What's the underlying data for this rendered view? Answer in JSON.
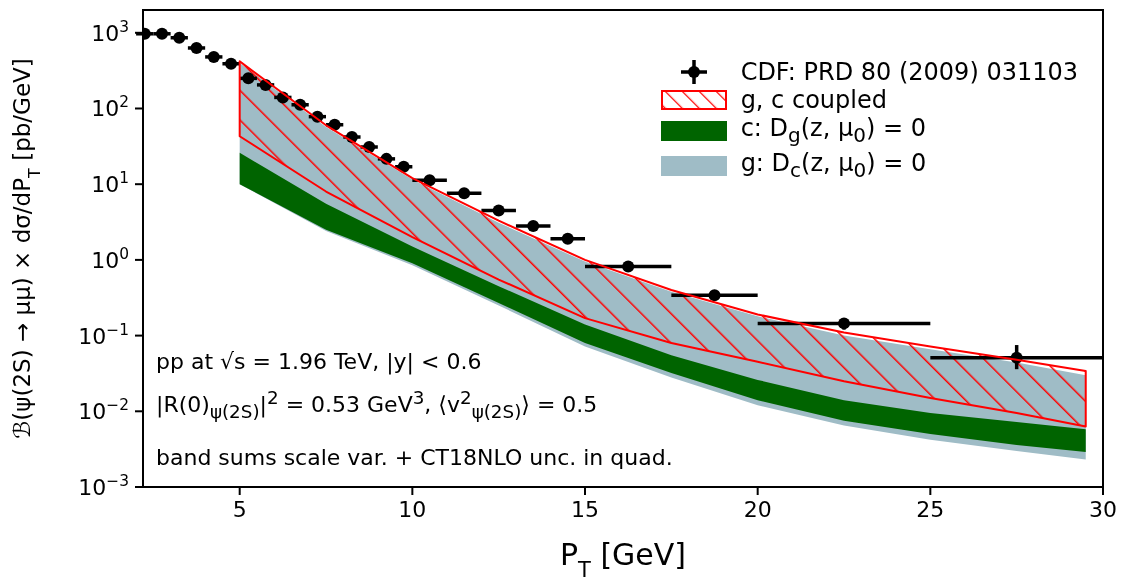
{
  "chart_data": {
    "type": "scatter",
    "xlabel": "P$_{T}$ [GeV]",
    "ylabel": "ℬ(ψ(2S) → μμ) × dσ/dP$_{T}$ [pb/GeV]",
    "log": "y",
    "xlim": [
      2.2,
      30
    ],
    "xticks": [
      5,
      10,
      15,
      20,
      25,
      30
    ],
    "ylim": [
      0.001,
      2000
    ],
    "yticks": [
      {
        "value": 0.001,
        "label": "10$^{−3}$"
      },
      {
        "value": 0.01,
        "label": "10$^{−2}$"
      },
      {
        "value": 0.1,
        "label": "10$^{−1}$"
      },
      {
        "value": 1,
        "label": "10$^{0}$"
      },
      {
        "value": 10,
        "label": "10$^{1}$"
      },
      {
        "value": 100,
        "label": "10$^{2}$"
      },
      {
        "value": 1000,
        "label": "10$^{3}$"
      }
    ],
    "legend": "top right",
    "marker": "circle",
    "series": [
      {
        "type": "area",
        "name": "g: D$_{c}$(z, μ$_{0}$) = 0",
        "color": "#9fbcc6",
        "x": [
          5,
          7.5,
          10,
          12.5,
          15,
          17.5,
          20,
          22.5,
          25,
          27.5,
          29.5
        ],
        "values": [
          null,
          null,
          null,
          null,
          null,
          null,
          null,
          null,
          null,
          null,
          null
        ],
        "lower": [
          10,
          2.4,
          0.85,
          0.25,
          0.072,
          0.028,
          0.012,
          0.0065,
          0.0042,
          0.003,
          0.0023
        ],
        "upper": [
          400,
          57,
          11.5,
          3.1,
          0.95,
          0.38,
          0.18,
          0.1,
          0.066,
          0.044,
          0.03
        ]
      },
      {
        "type": "area",
        "name": "c: D$_{g}$(z, μ$_{0}$) = 0",
        "color": "#006400",
        "x": [
          5,
          7.5,
          10,
          12.5,
          15,
          17.5,
          20,
          22.5,
          25,
          27.5,
          29.5
        ],
        "values": [
          null,
          null,
          null,
          null,
          null,
          null,
          null,
          null,
          null,
          null,
          null
        ],
        "lower": [
          10,
          2.5,
          0.9,
          0.27,
          0.08,
          0.032,
          0.014,
          0.0075,
          0.005,
          0.0036,
          0.0029
        ],
        "upper": [
          26,
          5.5,
          1.5,
          0.45,
          0.14,
          0.055,
          0.026,
          0.014,
          0.0095,
          0.0072,
          0.0058
        ]
      },
      {
        "type": "area",
        "line_style": "solid",
        "name": "g, c coupled",
        "color": "#ff0000",
        "x": [
          5,
          7.5,
          10,
          12.5,
          15,
          17.5,
          20,
          22.5,
          25,
          27.5,
          29.5
        ],
        "values": [
          null,
          null,
          null,
          null,
          null,
          null,
          null,
          null,
          null,
          null,
          null
        ],
        "lower": [
          43,
          8,
          2,
          0.55,
          0.17,
          0.08,
          0.045,
          0.025,
          0.015,
          0.0095,
          0.0063
        ],
        "upper": [
          420,
          60,
          12,
          3.3,
          1,
          0.4,
          0.19,
          0.11,
          0.072,
          0.048,
          0.034
        ]
      },
      {
        "type": "scatter",
        "name": "CDF: PRD 80 (2009) 031103",
        "color": "#000000",
        "x": [
          2.25,
          2.75,
          3.25,
          3.75,
          4.25,
          4.75,
          5.25,
          5.75,
          6.25,
          6.75,
          7.25,
          7.75,
          8.25,
          8.75,
          9.25,
          9.75,
          10.5,
          11.5,
          12.5,
          13.5,
          14.5,
          16.25,
          18.75,
          22.5,
          27.5
        ],
        "values": [
          970,
          970,
          860,
          630,
          480,
          390,
          250,
          205,
          140,
          112,
          78,
          61,
          42,
          31,
          21.6,
          17,
          11.3,
          7.6,
          4.5,
          2.8,
          1.9,
          0.82,
          0.34,
          0.145,
          0.051
        ],
        "xerrors": [
          0.25,
          0.25,
          0.25,
          0.25,
          0.25,
          0.25,
          0.25,
          0.25,
          0.25,
          0.25,
          0.25,
          0.25,
          0.25,
          0.25,
          0.25,
          0.25,
          0.5,
          0.5,
          0.5,
          0.5,
          0.5,
          1.25,
          1.25,
          2.5,
          2.5
        ],
        "errors": [
          null,
          null,
          null,
          null,
          null,
          null,
          null,
          null,
          null,
          null,
          null,
          null,
          null,
          null,
          null,
          null,
          null,
          null,
          null,
          null,
          null,
          null,
          null,
          [
            0.12,
            0.17
          ],
          [
            0.036,
            0.075
          ]
        ]
      }
    ],
    "annotations": [
      "pp at √s = 1.96 TeV, |y| < 0.6",
      "|R(0)$_{ψ(2S)}$|$^{2}$ = 0.53 GeV$^{3}$, ⟨v$^{2}$$_{ψ(2S)}$⟩ = 0.5",
      "band sums scale var. + CT18NLO unc. in quad."
    ]
  }
}
